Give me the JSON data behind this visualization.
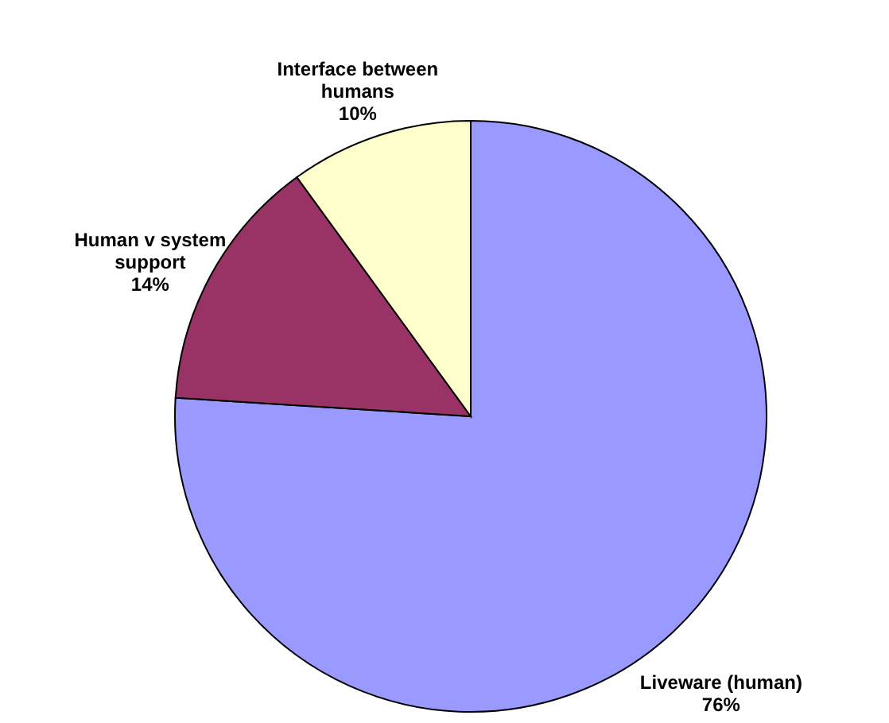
{
  "chart_data": {
    "type": "pie",
    "categories": [
      "Liveware (human)",
      "Human v system support",
      "Interface between humans"
    ],
    "values": [
      76,
      14,
      10
    ],
    "colors": [
      "#9999ff",
      "#993366",
      "#ffffcc"
    ],
    "value_labels": [
      "76%",
      "14%",
      "10%"
    ]
  }
}
